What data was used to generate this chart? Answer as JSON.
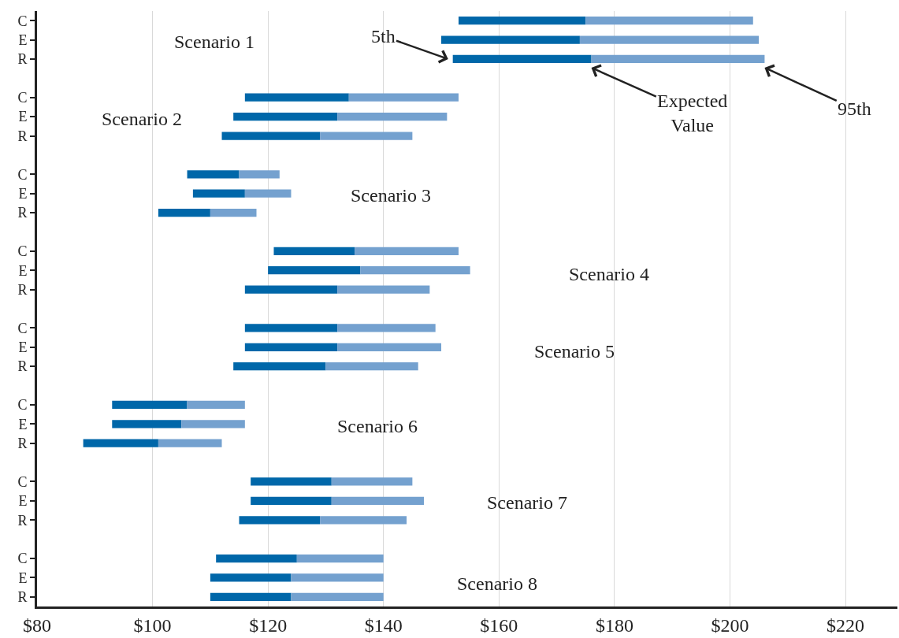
{
  "chart_data": {
    "type": "bar",
    "orientation": "horizontal",
    "categories": [
      "C",
      "E",
      "R",
      null,
      "C",
      "E",
      "R",
      null,
      "C",
      "E",
      "R",
      null,
      "C",
      "E",
      "R",
      null,
      "C",
      "E",
      "R",
      null,
      "C",
      "E",
      "R",
      null,
      "C",
      "E",
      "R",
      null,
      "C",
      "E",
      "R"
    ],
    "series": [
      {
        "color": "#0067a9",
        "base": [
          153,
          150,
          152,
          null,
          116,
          114,
          112,
          null,
          106,
          107,
          101,
          null,
          121,
          120,
          116,
          null,
          116,
          116,
          114,
          null,
          93,
          93,
          88,
          null,
          117,
          117,
          115,
          null,
          111,
          110,
          110
        ],
        "values": [
          22,
          24,
          24,
          null,
          18,
          18,
          17,
          null,
          9,
          9,
          9,
          null,
          14,
          16,
          16,
          null,
          16,
          16,
          16,
          null,
          13,
          12,
          13,
          null,
          14,
          14,
          14,
          null,
          14,
          14,
          14
        ]
      },
      {
        "color": "#74a1cf",
        "base": [
          175,
          174,
          176,
          null,
          134,
          132,
          129,
          null,
          115,
          116,
          110,
          null,
          135,
          136,
          132,
          null,
          132,
          132,
          130,
          null,
          106,
          105,
          101,
          null,
          131,
          131,
          129,
          null,
          125,
          124,
          124
        ],
        "values": [
          29,
          31,
          30,
          null,
          19,
          19,
          16,
          null,
          7,
          8,
          8,
          null,
          18,
          19,
          16,
          null,
          17,
          18,
          16,
          null,
          10,
          11,
          11,
          null,
          14,
          16,
          15,
          null,
          15,
          16,
          16
        ]
      }
    ],
    "xlim": [
      80,
      229
    ],
    "xticks": [
      {
        "value": 80,
        "label": "$80"
      },
      {
        "value": 100,
        "label": "$100"
      },
      {
        "value": 120,
        "label": "$120"
      },
      {
        "value": 140,
        "label": "$140"
      },
      {
        "value": 160,
        "label": "$160"
      },
      {
        "value": 180,
        "label": "$180"
      },
      {
        "value": 200,
        "label": "$200"
      },
      {
        "value": 220,
        "label": "$220"
      }
    ],
    "grid": "x",
    "annotations": [
      "Scenario 1",
      "Scenario 2",
      "Scenario 3",
      "Scenario 4",
      "Scenario 5",
      "Scenario 6",
      "Scenario 7",
      "Scenario 8",
      "5th",
      "Expected\nValue",
      "95th"
    ]
  }
}
